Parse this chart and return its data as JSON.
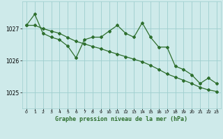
{
  "title": "Graphe pression niveau de la mer (hPa)",
  "bg_color": "#ceeaea",
  "grid_color": "#9ecece",
  "line_color": "#2d6e2d",
  "marker_color": "#2d6e2d",
  "x_ticks": [
    0,
    1,
    2,
    3,
    4,
    5,
    6,
    7,
    8,
    9,
    10,
    11,
    12,
    13,
    14,
    15,
    16,
    17,
    18,
    19,
    20,
    21,
    22,
    23
  ],
  "xlim": [
    -0.5,
    23.5
  ],
  "ylim": [
    1024.5,
    1027.85
  ],
  "yticks": [
    1025,
    1026,
    1027
  ],
  "line1_x": [
    0,
    1,
    2,
    3,
    4,
    5,
    6,
    7,
    8,
    9,
    10,
    11,
    12,
    13,
    14,
    15,
    16,
    17,
    18,
    19,
    20,
    21,
    22,
    23
  ],
  "line1_y": [
    1027.1,
    1027.45,
    1026.85,
    1026.73,
    1026.65,
    1026.45,
    1026.08,
    1026.65,
    1026.73,
    1026.73,
    1026.92,
    1027.1,
    1026.85,
    1026.73,
    1027.18,
    1026.73,
    1026.42,
    1026.42,
    1025.82,
    1025.72,
    1025.55,
    1025.28,
    1025.45,
    1025.28
  ],
  "line2_x": [
    0,
    1,
    2,
    3,
    4,
    5,
    6,
    7,
    8,
    9,
    10,
    11,
    12,
    13,
    14,
    15,
    16,
    17,
    18,
    19,
    20,
    21,
    22,
    23
  ],
  "line2_y": [
    1027.1,
    1027.1,
    1027.0,
    1026.92,
    1026.85,
    1026.72,
    1026.6,
    1026.52,
    1026.44,
    1026.37,
    1026.28,
    1026.2,
    1026.12,
    1026.04,
    1025.96,
    1025.85,
    1025.72,
    1025.58,
    1025.48,
    1025.38,
    1025.28,
    1025.16,
    1025.08,
    1025.03
  ]
}
